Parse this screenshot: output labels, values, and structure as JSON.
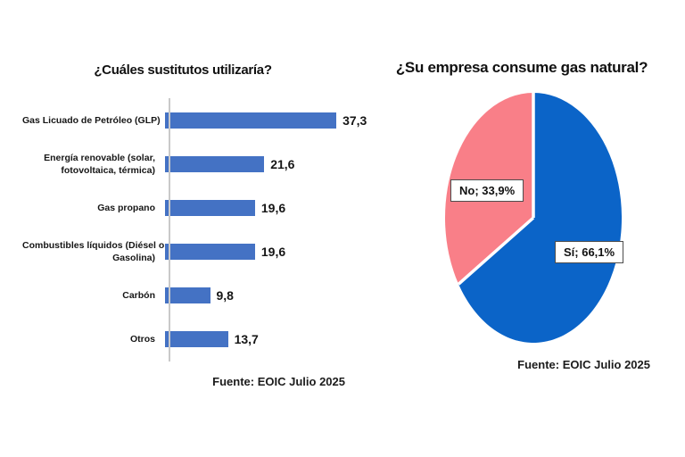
{
  "chart_data": [
    {
      "type": "bar",
      "orientation": "horizontal",
      "title": "¿Cuáles sustitutos utilizaría?",
      "categories": [
        "Gas Licuado de Petróleo (GLP)",
        "Energía renovable (solar, fotovoltaica, térmica)",
        "Gas propano",
        "Combustibles líquidos (Diésel o Gasolina)",
        "Carbón",
        "Otros"
      ],
      "category_lines": [
        [
          "Gas Licuado de Petróleo (GLP)"
        ],
        [
          "Energía renovable (solar,",
          "fotovoltaica, térmica)"
        ],
        [
          "Gas propano"
        ],
        [
          "Combustibles líquidos (Diésel o",
          "Gasolina)"
        ],
        [
          "Carbón"
        ],
        [
          "Otros"
        ]
      ],
      "values": [
        37.3,
        21.6,
        19.6,
        19.6,
        9.8,
        13.7
      ],
      "value_labels": [
        "37,3",
        "21,6",
        "19,6",
        "19,6",
        "9,8",
        "13,7"
      ],
      "xlim": [
        0,
        40
      ],
      "grid": false,
      "legend": "none",
      "bar_color": "#4472c4",
      "source": "Fuente: EOIC Julio 2025"
    },
    {
      "type": "pie",
      "title": "¿Su empresa consume gas natural?",
      "start_angle_deg": 0,
      "direction": "clockwise",
      "slices": [
        {
          "label": "Sí",
          "value": 66.1,
          "display": "Sí; 66,1%",
          "color": "#0b64c8"
        },
        {
          "label": "No",
          "value": 33.9,
          "display": "No; 33,9%",
          "color": "#f97f88"
        }
      ],
      "separator_color": "#ffffff",
      "source": "Fuente: EOIC Julio 2025"
    }
  ],
  "colors": {
    "bar_blue": "#4472c4",
    "pie_blue": "#0b64c8",
    "pie_pink": "#f97f88",
    "axis_gray": "#c9c9c9"
  }
}
